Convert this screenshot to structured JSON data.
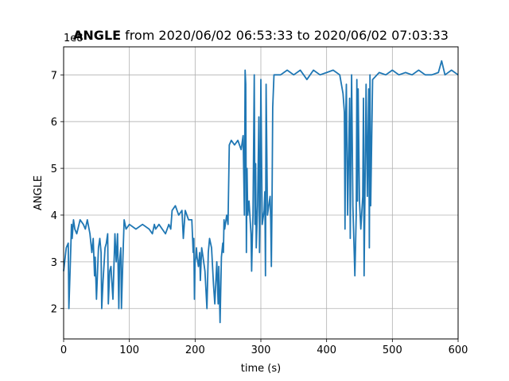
{
  "chart_data": {
    "type": "line",
    "title_bold": "ANGLE",
    "title_rest": "from 2020/06/02 06:53:33 to 2020/06/02 07:03:33",
    "xlabel": "time (s)",
    "ylabel": "ANGLE",
    "y_offset_label": "1e8",
    "xlim": [
      0,
      600
    ],
    "ylim": [
      1.35,
      7.6
    ],
    "x_ticks": [
      0,
      100,
      200,
      300,
      400,
      500,
      600
    ],
    "x_tick_labels": [
      "0",
      "100",
      "200",
      "300",
      "400",
      "500",
      "600"
    ],
    "y_ticks": [
      2,
      3,
      4,
      5,
      6,
      7
    ],
    "y_tick_labels": [
      "2",
      "3",
      "4",
      "5",
      "6",
      "7"
    ],
    "grid": true,
    "line_color": "#1f77b4",
    "series": [
      {
        "name": "",
        "x": [
          0,
          4,
          7,
          8,
          10,
          12,
          13,
          15,
          17,
          20,
          25,
          30,
          33,
          36,
          40,
          43,
          45,
          47,
          48,
          50,
          53,
          55,
          57,
          58,
          60,
          63,
          65,
          67,
          68,
          70,
          72,
          75,
          78,
          80,
          82,
          84,
          85,
          87,
          88,
          90,
          92,
          95,
          100,
          110,
          120,
          130,
          135,
          138,
          140,
          145,
          150,
          155,
          160,
          163,
          165,
          170,
          175,
          180,
          182,
          185,
          190,
          195,
          197,
          198,
          199,
          200,
          201,
          202,
          203,
          205,
          207,
          208,
          210,
          212,
          215,
          218,
          220,
          222,
          225,
          228,
          230,
          233,
          235,
          236,
          238,
          240,
          242,
          243,
          244,
          245,
          247,
          248,
          250,
          252,
          255,
          260,
          265,
          270,
          273,
          275,
          276,
          277,
          278,
          279,
          280,
          282,
          285,
          286,
          287,
          288,
          290,
          291,
          292,
          293,
          295,
          297,
          298,
          299,
          300,
          302,
          305,
          306,
          307,
          308,
          310,
          313,
          314,
          315,
          316,
          317,
          318,
          320,
          330,
          340,
          350,
          360,
          370,
          380,
          390,
          400,
          410,
          420,
          425,
          427,
          428,
          429,
          430,
          432,
          435,
          436,
          437,
          438,
          440,
          443,
          445,
          446,
          447,
          448,
          450,
          452,
          455,
          456,
          457,
          458,
          460,
          462,
          464,
          465,
          466,
          467,
          470,
          480,
          490,
          500,
          510,
          520,
          530,
          540,
          550,
          560,
          570,
          575,
          580,
          590,
          600
        ],
        "values": [
          2.8,
          3.3,
          3.4,
          2.0,
          2.9,
          3.8,
          3.5,
          3.9,
          3.7,
          3.6,
          3.9,
          3.8,
          3.7,
          3.9,
          3.6,
          3.2,
          3.5,
          2.7,
          3.1,
          2.2,
          3.3,
          3.5,
          3.2,
          2.0,
          2.6,
          3.3,
          3.4,
          3.6,
          2.1,
          2.8,
          2.9,
          2.2,
          3.6,
          3.0,
          3.6,
          2.0,
          3.0,
          3.3,
          2.0,
          3.0,
          3.9,
          3.7,
          3.8,
          3.7,
          3.8,
          3.7,
          3.6,
          3.8,
          3.7,
          3.8,
          3.7,
          3.6,
          3.8,
          3.7,
          4.1,
          4.2,
          4.0,
          4.1,
          3.5,
          4.1,
          3.9,
          3.9,
          3.2,
          3.5,
          2.2,
          3.0,
          3.1,
          3.3,
          3.1,
          2.9,
          3.2,
          2.6,
          3.3,
          3.1,
          2.8,
          2.0,
          3.2,
          3.5,
          3.3,
          2.5,
          2.1,
          3.0,
          2.1,
          2.9,
          1.7,
          3.1,
          3.4,
          3.2,
          3.9,
          3.7,
          3.9,
          4.0,
          3.8,
          5.5,
          5.6,
          5.5,
          5.6,
          5.4,
          5.7,
          4.0,
          7.1,
          6.8,
          3.2,
          5.0,
          4.0,
          4.3,
          3.6,
          2.8,
          3.5,
          4.0,
          7.0,
          3.8,
          5.1,
          3.3,
          4.2,
          6.1,
          3.2,
          4.4,
          6.9,
          3.8,
          4.1,
          4.5,
          2.7,
          6.8,
          4.0,
          4.3,
          4.4,
          3.9,
          2.9,
          4.4,
          6.3,
          7.0,
          7.0,
          7.1,
          7.0,
          7.1,
          6.9,
          7.1,
          7.0,
          7.05,
          7.1,
          7.0,
          6.6,
          6.2,
          3.7,
          6.0,
          6.8,
          4.0,
          6.5,
          3.5,
          5.6,
          7.0,
          4.2,
          2.7,
          4.0,
          6.9,
          4.3,
          6.7,
          4.3,
          3.7,
          4.4,
          6.5,
          2.7,
          4.0,
          6.8,
          4.4,
          6.7,
          3.3,
          7.0,
          4.2,
          6.9,
          7.05,
          7.0,
          7.1,
          7.0,
          7.05,
          7.0,
          7.1,
          7.0,
          7.0,
          7.05,
          7.3,
          7.0,
          7.1,
          7.0
        ]
      }
    ]
  }
}
